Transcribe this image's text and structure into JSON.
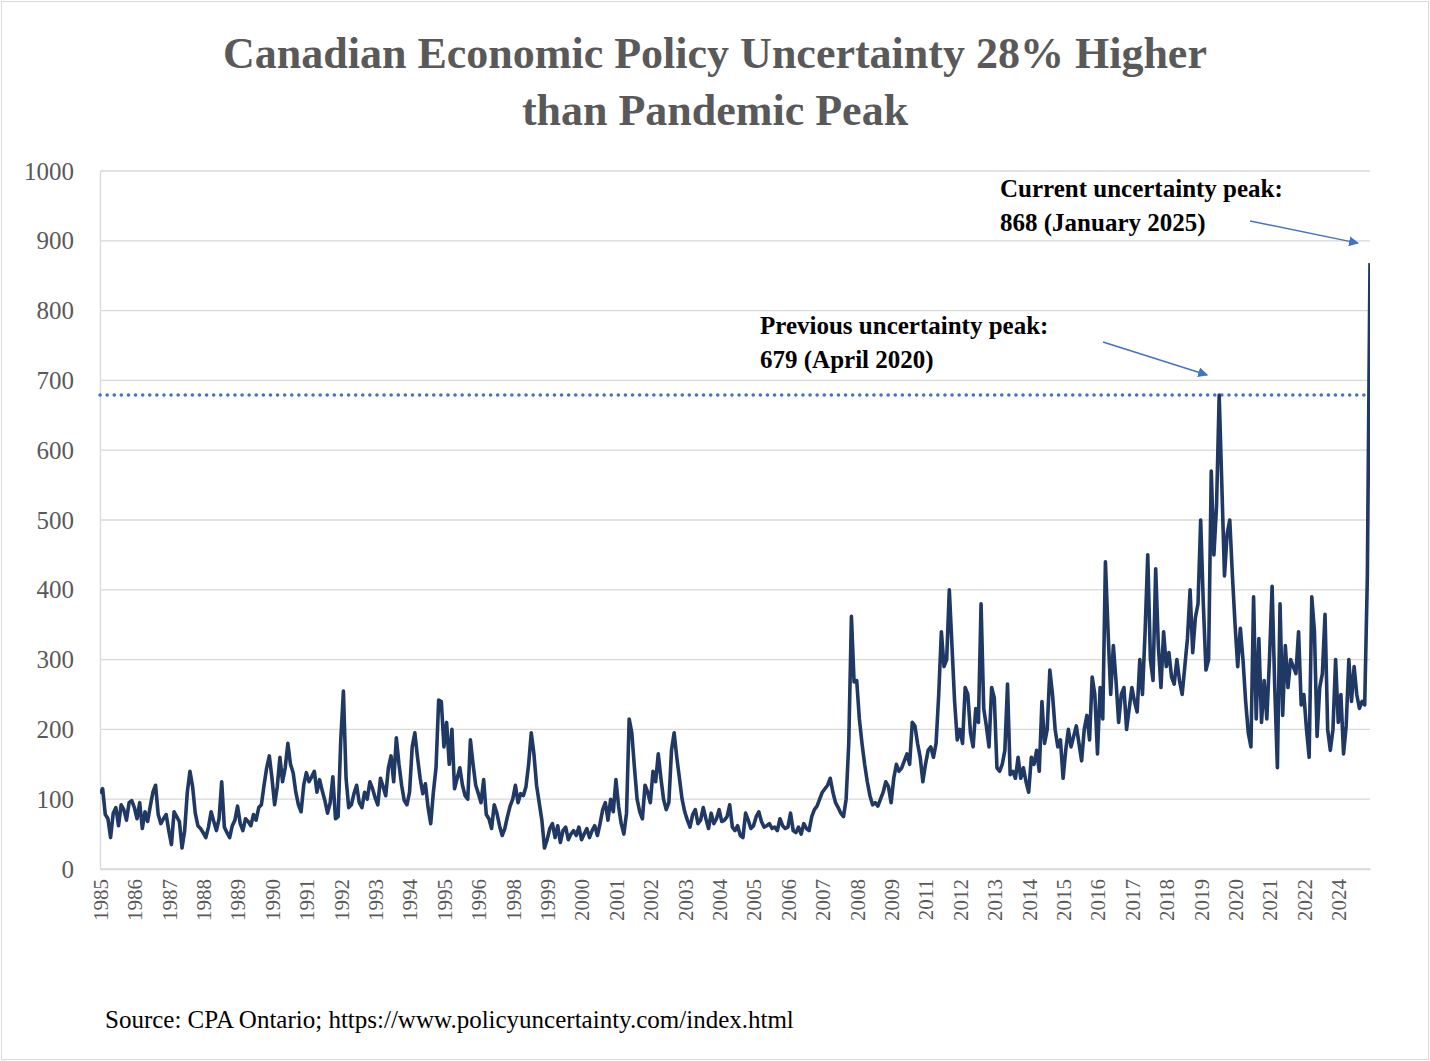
{
  "chart_data": {
    "type": "line",
    "title": [
      "Canadian Economic Policy Uncertainty 28% Higher",
      "than Pandemic Peak"
    ],
    "source": "Source: CPA Ontario; https://www.policyuncertainty.com/index.html",
    "color": "#1f3864",
    "grid": true,
    "ylim": [
      0,
      1000
    ],
    "yticks": [
      0,
      100,
      200,
      300,
      400,
      500,
      600,
      700,
      800,
      900,
      1000
    ],
    "annotations": [
      {
        "text": [
          "Current uncertainty peak:",
          "868 (January 2025)"
        ],
        "value": 868
      },
      {
        "text": [
          "Previous uncertainty peak:",
          "679 (April 2020)"
        ],
        "value": 679,
        "line_style": "dotted"
      }
    ],
    "categories": [
      "1985",
      null,
      null,
      null,
      null,
      null,
      null,
      null,
      null,
      null,
      null,
      null,
      null,
      "1986",
      null,
      null,
      null,
      null,
      null,
      null,
      null,
      null,
      null,
      null,
      null,
      null,
      "1987",
      null,
      null,
      null,
      null,
      null,
      null,
      null,
      null,
      null,
      null,
      null,
      null,
      "1988",
      null,
      null,
      null,
      null,
      null,
      null,
      null,
      null,
      null,
      null,
      null,
      null,
      "1989",
      null,
      null,
      null,
      null,
      null,
      null,
      null,
      null,
      null,
      null,
      null,
      null,
      "1990",
      null,
      null,
      null,
      null,
      null,
      null,
      null,
      null,
      null,
      null,
      null,
      null,
      "1991",
      null,
      null,
      null,
      null,
      null,
      null,
      null,
      null,
      null,
      null,
      null,
      null,
      "1992",
      null,
      null,
      null,
      null,
      null,
      null,
      null,
      null,
      null,
      null,
      null,
      null,
      "1993",
      null,
      null,
      null,
      null,
      null,
      null,
      null,
      null,
      null,
      null,
      null,
      null,
      "1994",
      null,
      null,
      null,
      null,
      null,
      null,
      null,
      null,
      null,
      null,
      null,
      null,
      "1995",
      null,
      null,
      null,
      null,
      null,
      null,
      null,
      null,
      null,
      null,
      null,
      null,
      "1996",
      null,
      null,
      null,
      null,
      null,
      null,
      null,
      null,
      null,
      null,
      null,
      null,
      "1998",
      null,
      null,
      null,
      null,
      null,
      null,
      null,
      null,
      null,
      null,
      null,
      null,
      "1999",
      null,
      null,
      null,
      null,
      null,
      null,
      null,
      null,
      null,
      null,
      null,
      null,
      "2000",
      null,
      null,
      null,
      null,
      null,
      null,
      null,
      null,
      null,
      null,
      null,
      null,
      "2001",
      null,
      null,
      null,
      null,
      null,
      null,
      null,
      null,
      null,
      null,
      null,
      null,
      "2002",
      null,
      null,
      null,
      null,
      null,
      null,
      null,
      null,
      null,
      null,
      null,
      null,
      "2003",
      null,
      null,
      null,
      null,
      null,
      null,
      null,
      null,
      null,
      null,
      null,
      null,
      "2004",
      null,
      null,
      null,
      null,
      null,
      null,
      null,
      null,
      null,
      null,
      null,
      null,
      "2005",
      null,
      null,
      null,
      null,
      null,
      null,
      null,
      null,
      null,
      null,
      null,
      null,
      "2006",
      null,
      null,
      null,
      null,
      null,
      null,
      null,
      null,
      null,
      null,
      null,
      null,
      "2007",
      null,
      null,
      null,
      null,
      null,
      null,
      null,
      null,
      null,
      null,
      null,
      null,
      "2008",
      null,
      null,
      null,
      null,
      null,
      null,
      null,
      null,
      null,
      null,
      null,
      null,
      "2009",
      null,
      null,
      null,
      null,
      null,
      null,
      null,
      null,
      null,
      null,
      null,
      null,
      "2011",
      null,
      null,
      null,
      null,
      null,
      null,
      null,
      null,
      null,
      null,
      null,
      null,
      "2012",
      null,
      null,
      null,
      null,
      null,
      null,
      null,
      null,
      null,
      null,
      null,
      null,
      "2013",
      null,
      null,
      null,
      null,
      null,
      null,
      null,
      null,
      null,
      null,
      null,
      null,
      "2014",
      null,
      null,
      null,
      null,
      null,
      null,
      null,
      null,
      null,
      null,
      null,
      null,
      "2015",
      null,
      null,
      null,
      null,
      null,
      null,
      null,
      null,
      null,
      null,
      null,
      null,
      "2016",
      null,
      null,
      null,
      null,
      null,
      null,
      null,
      null,
      null,
      null,
      null,
      null,
      "2017",
      null,
      null,
      null,
      null,
      null,
      null,
      null,
      null,
      null,
      null,
      null,
      null,
      "2018",
      null,
      null,
      null,
      null,
      null,
      null,
      null,
      null,
      null,
      null,
      null,
      null,
      "2019",
      null,
      null,
      null,
      null,
      null,
      null,
      null,
      null,
      null,
      null,
      null,
      null,
      "2020",
      null,
      null,
      null,
      null,
      null,
      null,
      null,
      null,
      null,
      null,
      null,
      null,
      "2021",
      null,
      null,
      null,
      null,
      null,
      null,
      null,
      null,
      null,
      null,
      null,
      null,
      "2022",
      null,
      null,
      null,
      null,
      null,
      null,
      null,
      null,
      null,
      null,
      null,
      null,
      "2024",
      null,
      null,
      null,
      null,
      null,
      null,
      null,
      null,
      null,
      null,
      null,
      null
    ],
    "values": [
      108,
      115,
      78,
      72,
      45,
      80,
      88,
      62,
      92,
      85,
      70,
      95,
      98,
      88,
      72,
      95,
      58,
      82,
      68,
      90,
      110,
      120,
      78,
      65,
      72,
      78,
      55,
      35,
      82,
      75,
      68,
      30,
      55,
      110,
      140,
      118,
      80,
      62,
      58,
      52,
      45,
      60,
      82,
      68,
      55,
      72,
      125,
      60,
      52,
      45,
      62,
      70,
      90,
      65,
      55,
      72,
      68,
      62,
      78,
      70,
      88,
      92,
      120,
      145,
      162,
      130,
      92,
      118,
      160,
      125,
      145,
      180,
      150,
      138,
      110,
      92,
      82,
      120,
      138,
      125,
      132,
      140,
      110,
      128,
      112,
      98,
      80,
      95,
      132,
      72,
      75,
      185,
      255,
      130,
      88,
      92,
      108,
      120,
      95,
      88,
      110,
      100,
      125,
      115,
      102,
      92,
      130,
      118,
      105,
      145,
      162,
      125,
      188,
      150,
      120,
      98,
      92,
      110,
      175,
      195,
      160,
      130,
      108,
      122,
      88,
      65,
      110,
      145,
      242,
      240,
      175,
      210,
      150,
      200,
      115,
      130,
      145,
      120,
      105,
      100,
      185,
      150,
      120,
      108,
      95,
      128,
      78,
      72,
      58,
      92,
      80,
      62,
      48,
      58,
      75,
      90,
      100,
      120,
      95,
      108,
      105,
      118,
      150,
      195,
      165,
      120,
      95,
      70,
      30,
      42,
      58,
      65,
      45,
      62,
      38,
      55,
      60,
      42,
      50,
      55,
      48,
      60,
      42,
      50,
      58,
      45,
      55,
      62,
      48,
      65,
      85,
      95,
      70,
      100,
      82,
      128,
      90,
      65,
      50,
      80,
      215,
      195,
      145,
      100,
      82,
      72,
      120,
      110,
      95,
      140,
      125,
      165,
      130,
      100,
      85,
      95,
      170,
      195,
      160,
      130,
      100,
      82,
      70,
      60,
      78,
      85,
      65,
      70,
      88,
      72,
      58,
      80,
      65,
      72,
      85,
      68,
      70,
      75,
      92,
      60,
      55,
      62,
      48,
      45,
      80,
      70,
      58,
      62,
      75,
      82,
      68,
      60,
      62,
      65,
      58,
      60,
      55,
      72,
      62,
      58,
      60,
      80,
      55,
      52,
      60,
      50,
      65,
      58,
      55,
      75,
      85,
      90,
      100,
      110,
      115,
      120,
      130,
      110,
      95,
      88,
      80,
      75,
      100,
      180,
      362,
      268,
      270,
      215,
      180,
      150,
      125,
      105,
      92,
      95,
      90,
      100,
      110,
      125,
      118,
      95,
      130,
      150,
      140,
      145,
      155,
      165,
      150,
      210,
      205,
      180,
      160,
      125,
      150,
      170,
      175,
      160,
      180,
      250,
      340,
      290,
      300,
      400,
      320,
      240,
      185,
      200,
      180,
      260,
      250,
      195,
      175,
      230,
      210,
      380,
      230,
      205,
      175,
      260,
      245,
      145,
      140,
      150,
      170,
      265,
      135,
      140,
      130,
      160,
      130,
      145,
      125,
      110,
      160,
      150,
      170,
      140,
      240,
      180,
      200,
      285,
      250,
      200,
      175,
      185,
      130,
      170,
      200,
      175,
      190,
      205,
      180,
      155,
      200,
      220,
      185,
      275,
      250,
      165,
      260,
      215,
      440,
      340,
      250,
      320,
      270,
      210,
      250,
      260,
      200,
      230,
      260,
      240,
      225,
      300,
      250,
      340,
      450,
      300,
      270,
      430,
      320,
      260,
      340,
      290,
      310,
      275,
      265,
      300,
      270,
      250,
      290,
      330,
      400,
      310,
      360,
      380,
      500,
      380,
      285,
      300,
      570,
      450,
      520,
      679,
      550,
      420,
      480,
      500,
      420,
      350,
      290,
      345,
      300,
      240,
      195,
      175,
      390,
      215,
      330,
      210,
      270,
      215,
      300,
      405,
      260,
      145,
      380,
      220,
      320,
      260,
      300,
      290,
      280,
      340,
      235,
      250,
      200,
      160,
      390,
      340,
      190,
      260,
      280,
      365,
      200,
      170,
      200,
      300,
      210,
      250,
      165,
      205,
      300,
      240,
      290,
      250,
      230,
      240,
      235,
      420,
      868
    ]
  }
}
